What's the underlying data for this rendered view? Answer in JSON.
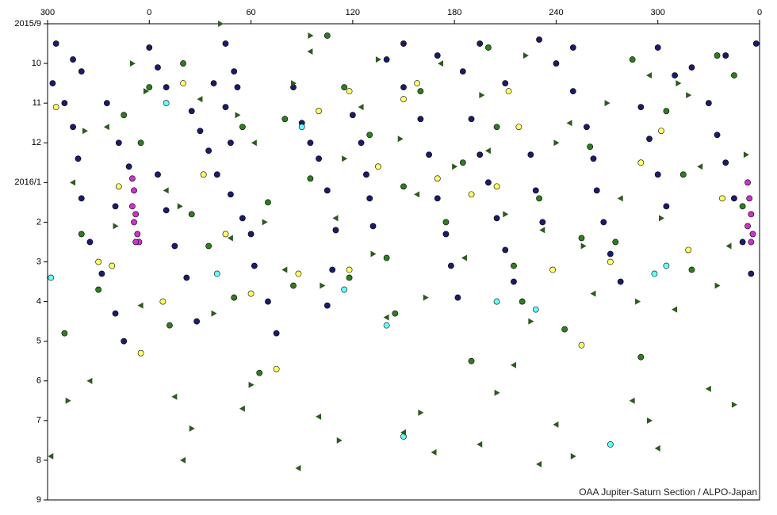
{
  "chart_data": {
    "type": "scatter",
    "credit": "OAA Jupiter-Saturn Section / ALPO-Japan",
    "xlim": [
      -60,
      360
    ],
    "xticks": [
      {
        "value": -60,
        "label": "300"
      },
      0,
      60,
      120,
      180,
      240,
      300,
      {
        "value": 360,
        "label": "0"
      }
    ],
    "ylim": [
      0,
      12
    ],
    "y_inverted": true,
    "yticks": [
      {
        "value": 0,
        "label": "2015/9"
      },
      {
        "value": 1,
        "label": "10"
      },
      {
        "value": 2,
        "label": "11"
      },
      {
        "value": 3,
        "label": "12"
      },
      {
        "value": 4,
        "label": "2016/1"
      },
      {
        "value": 5,
        "label": "2"
      },
      {
        "value": 6,
        "label": "3"
      },
      {
        "value": 7,
        "label": "4"
      },
      {
        "value": 8,
        "label": "5"
      },
      {
        "value": 9,
        "label": "6"
      },
      {
        "value": 10,
        "label": "7"
      },
      {
        "value": 11,
        "label": "8"
      },
      {
        "value": 12,
        "label": "9"
      }
    ],
    "series": [
      {
        "color": "#1b1b6b",
        "marker": "circle",
        "x": [
          -57,
          -50,
          -45,
          -42,
          -40,
          -35,
          -28,
          -20,
          -15,
          -25,
          -18,
          -12,
          -20,
          5,
          10,
          15,
          22,
          28,
          25,
          30,
          35,
          40,
          38,
          45,
          48,
          48,
          55,
          60,
          62,
          70,
          75,
          85,
          90,
          95,
          100,
          105,
          110,
          108,
          105,
          120,
          125,
          128,
          130,
          132,
          140,
          150,
          160,
          165,
          170,
          175,
          178,
          182,
          190,
          195,
          200,
          205,
          210,
          215,
          225,
          228,
          232,
          240,
          250,
          258,
          262,
          264,
          268,
          272,
          278,
          290,
          295,
          300,
          305,
          320,
          330,
          335,
          340,
          345,
          350,
          355,
          -55,
          -45,
          -40,
          0,
          5,
          10,
          45,
          50,
          52,
          150,
          170,
          185,
          195,
          210,
          230,
          250,
          300,
          310,
          340,
          358
        ],
        "values": [
          1.5,
          2.0,
          2.6,
          3.4,
          4.4,
          5.5,
          6.3,
          7.3,
          8.0,
          2.0,
          3.0,
          3.6,
          4.6,
          3.8,
          4.7,
          5.6,
          6.4,
          7.5,
          2.2,
          2.7,
          3.2,
          3.8,
          1.5,
          2.1,
          3.0,
          4.3,
          4.9,
          5.3,
          6.1,
          7.0,
          7.8,
          1.6,
          2.5,
          3.0,
          3.4,
          4.2,
          5.2,
          6.2,
          7.1,
          2.3,
          3.0,
          3.8,
          4.4,
          5.1,
          0.9,
          1.6,
          2.4,
          3.3,
          4.4,
          5.3,
          6.1,
          6.9,
          2.4,
          3.3,
          4.0,
          4.9,
          5.7,
          6.5,
          3.3,
          4.2,
          5.0,
          1.0,
          1.7,
          2.6,
          3.4,
          4.2,
          5.0,
          5.8,
          6.5,
          2.1,
          2.9,
          3.8,
          4.6,
          1.1,
          2.0,
          2.8,
          3.5,
          4.4,
          5.5,
          6.3,
          0.5,
          0.9,
          1.2,
          0.6,
          1.1,
          1.6,
          0.5,
          1.2,
          1.6,
          0.5,
          0.8,
          1.2,
          0.5,
          1.5,
          0.4,
          0.6,
          0.6,
          1.3,
          0.8,
          0.5
        ]
      },
      {
        "color": "#2e7d1e",
        "marker": "circle",
        "x": [
          -40,
          -30,
          -15,
          0,
          12,
          20,
          35,
          50,
          65,
          80,
          95,
          105,
          118,
          130,
          145,
          160,
          175,
          190,
          205,
          215,
          230,
          245,
          260,
          275,
          290,
          305,
          320,
          335,
          350,
          -50,
          -5,
          25,
          55,
          85,
          115,
          150,
          185,
          220,
          255,
          285,
          315,
          345,
          70,
          140,
          200
        ],
        "values": [
          5.3,
          6.7,
          2.3,
          1.6,
          7.6,
          1.0,
          5.6,
          6.9,
          8.8,
          2.4,
          3.9,
          0.3,
          6.4,
          2.8,
          7.3,
          1.7,
          5.0,
          8.5,
          2.6,
          6.1,
          4.4,
          7.7,
          3.1,
          5.5,
          8.4,
          2.2,
          6.2,
          0.8,
          4.6,
          7.8,
          3.0,
          4.8,
          2.6,
          6.6,
          1.6,
          4.1,
          3.5,
          7.0,
          5.4,
          0.9,
          3.8,
          1.3,
          4.5,
          5.9,
          0.6
        ]
      },
      {
        "color": "#ffff66",
        "marker": "circle",
        "x": [
          -55,
          -30,
          -18,
          -5,
          8,
          20,
          32,
          45,
          60,
          75,
          88,
          100,
          118,
          135,
          150,
          158,
          170,
          190,
          205,
          218,
          238,
          255,
          272,
          290,
          302,
          318,
          338,
          -22,
          118,
          212
        ],
        "values": [
          2.1,
          6.0,
          4.1,
          8.3,
          7.0,
          1.5,
          3.8,
          5.3,
          6.8,
          8.7,
          6.3,
          2.2,
          1.7,
          3.6,
          1.9,
          1.5,
          3.9,
          4.3,
          4.1,
          2.6,
          6.2,
          8.1,
          6.0,
          3.5,
          2.7,
          5.7,
          4.4,
          6.1,
          6.2,
          1.7
        ]
      },
      {
        "color": "#66ffff",
        "marker": "circle",
        "x": [
          -58,
          10,
          40,
          90,
          115,
          140,
          150,
          205,
          228,
          272,
          298,
          305
        ],
        "values": [
          6.4,
          2.0,
          6.3,
          2.6,
          6.7,
          7.6,
          10.4,
          7.0,
          7.2,
          10.6,
          6.3,
          6.1
        ]
      },
      {
        "color": "#cc33cc",
        "marker": "circle",
        "x": [
          -10,
          -9,
          -10,
          -8,
          -9,
          -7,
          -6,
          -8,
          353,
          354,
          355,
          353,
          356,
          355
        ],
        "values": [
          3.9,
          4.2,
          4.6,
          4.8,
          5.0,
          5.3,
          5.5,
          5.5,
          4.0,
          4.4,
          4.8,
          5.1,
          5.3,
          5.5
        ]
      },
      {
        "color": "#2d5a1e",
        "marker": "triangle-left",
        "x": [
          -45,
          -25,
          -5,
          10,
          30,
          48,
          62,
          80,
          95,
          110,
          125,
          140,
          158,
          172,
          186,
          200,
          215,
          232,
          248,
          262,
          278,
          295,
          310,
          325,
          342,
          -35,
          15,
          55,
          100,
          150,
          195,
          240,
          285,
          330,
          -58,
          20,
          88,
          168,
          230,
          300
        ],
        "values": [
          4.0,
          2.6,
          7.1,
          4.2,
          1.9,
          5.4,
          3.0,
          6.2,
          0.7,
          4.9,
          2.1,
          7.4,
          4.3,
          1.0,
          5.9,
          3.2,
          8.6,
          5.2,
          2.5,
          6.8,
          4.4,
          1.3,
          7.2,
          3.6,
          5.6,
          9.0,
          9.4,
          9.7,
          9.9,
          10.3,
          10.6,
          10.1,
          9.5,
          9.2,
          10.9,
          11.0,
          11.2,
          10.8,
          11.1,
          10.7
        ]
      },
      {
        "color": "#2d5a1e",
        "marker": "triangle-right",
        "x": [
          -38,
          -20,
          -2,
          18,
          38,
          52,
          68,
          85,
          102,
          115,
          132,
          148,
          163,
          180,
          196,
          210,
          225,
          240,
          256,
          270,
          288,
          302,
          318,
          335,
          352,
          -48,
          25,
          60,
          112,
          160,
          205,
          250,
          295,
          345,
          -10,
          42,
          95,
          135,
          222,
          312
        ],
        "values": [
          2.7,
          5.1,
          1.7,
          4.6,
          7.3,
          2.3,
          5.0,
          1.5,
          6.6,
          3.4,
          5.8,
          2.9,
          6.9,
          3.6,
          1.8,
          4.8,
          7.5,
          3.0,
          5.6,
          2.0,
          7.0,
          4.9,
          1.8,
          6.6,
          3.3,
          9.5,
          10.2,
          9.1,
          10.5,
          9.8,
          9.3,
          10.9,
          10.0,
          9.6,
          1.0,
          0.0,
          0.3,
          0.9,
          0.8,
          1.5
        ]
      }
    ]
  }
}
